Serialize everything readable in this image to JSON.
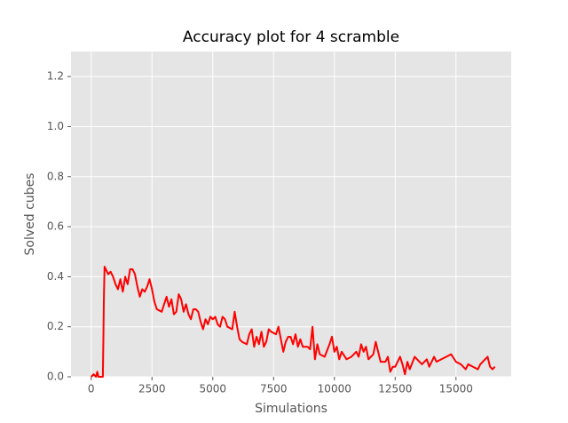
{
  "chart_data": {
    "type": "line",
    "title": "Accuracy plot for 4 scramble",
    "x_label": "Simulations",
    "y_label": "Solved cubes",
    "x": [
      0,
      100,
      200,
      250,
      300,
      400,
      480,
      500,
      520,
      550,
      600,
      700,
      800,
      900,
      1000,
      1100,
      1200,
      1300,
      1400,
      1500,
      1600,
      1700,
      1800,
      1900,
      2000,
      2100,
      2200,
      2300,
      2400,
      2500,
      2600,
      2700,
      2900,
      3000,
      3100,
      3200,
      3300,
      3400,
      3500,
      3600,
      3700,
      3800,
      3900,
      4000,
      4100,
      4200,
      4300,
      4400,
      4500,
      4600,
      4700,
      4800,
      4900,
      5000,
      5100,
      5200,
      5300,
      5400,
      5500,
      5600,
      5800,
      5900,
      6000,
      6100,
      6200,
      6400,
      6500,
      6600,
      6700,
      6800,
      6900,
      7000,
      7100,
      7200,
      7300,
      7400,
      7600,
      7700,
      7800,
      7900,
      8000,
      8100,
      8200,
      8300,
      8400,
      8500,
      8600,
      8700,
      8900,
      9000,
      9100,
      9200,
      9300,
      9400,
      9600,
      9800,
      9900,
      10000,
      10100,
      10200,
      10300,
      10500,
      10700,
      10900,
      11000,
      11100,
      11200,
      11300,
      11400,
      11600,
      11700,
      11800,
      11900,
      12100,
      12200,
      12300,
      12400,
      12500,
      12600,
      12700,
      12800,
      12900,
      13000,
      13100,
      13300,
      13400,
      13600,
      13800,
      13900,
      14100,
      14200,
      14400,
      14600,
      14800,
      15000,
      15200,
      15400,
      15500,
      15700,
      15900,
      16000,
      16300,
      16400,
      16500,
      16600
    ],
    "series": [
      {
        "name": "Solved cubes",
        "color": "#ff0000",
        "values": [
          0.0,
          0.01,
          0.0,
          0.02,
          0.0,
          0.0,
          0.0,
          0.14,
          0.3,
          0.44,
          0.43,
          0.41,
          0.42,
          0.4,
          0.37,
          0.35,
          0.39,
          0.34,
          0.4,
          0.37,
          0.43,
          0.43,
          0.41,
          0.36,
          0.32,
          0.35,
          0.34,
          0.36,
          0.39,
          0.35,
          0.3,
          0.27,
          0.26,
          0.29,
          0.32,
          0.28,
          0.31,
          0.25,
          0.26,
          0.33,
          0.31,
          0.26,
          0.29,
          0.25,
          0.23,
          0.27,
          0.27,
          0.26,
          0.22,
          0.19,
          0.23,
          0.21,
          0.24,
          0.23,
          0.24,
          0.21,
          0.2,
          0.24,
          0.23,
          0.2,
          0.19,
          0.26,
          0.2,
          0.15,
          0.14,
          0.13,
          0.17,
          0.19,
          0.12,
          0.16,
          0.13,
          0.18,
          0.12,
          0.14,
          0.19,
          0.18,
          0.17,
          0.2,
          0.15,
          0.1,
          0.14,
          0.16,
          0.16,
          0.13,
          0.17,
          0.12,
          0.15,
          0.12,
          0.12,
          0.11,
          0.2,
          0.07,
          0.13,
          0.09,
          0.08,
          0.13,
          0.16,
          0.1,
          0.12,
          0.07,
          0.1,
          0.07,
          0.08,
          0.1,
          0.08,
          0.13,
          0.1,
          0.12,
          0.07,
          0.09,
          0.14,
          0.1,
          0.06,
          0.06,
          0.08,
          0.02,
          0.04,
          0.04,
          0.06,
          0.08,
          0.05,
          0.01,
          0.06,
          0.03,
          0.08,
          0.07,
          0.05,
          0.07,
          0.04,
          0.08,
          0.06,
          0.07,
          0.08,
          0.09,
          0.06,
          0.05,
          0.03,
          0.05,
          0.04,
          0.03,
          0.05,
          0.08,
          0.04,
          0.03,
          0.04
        ]
      }
    ],
    "xlim": [
      -830,
      17270
    ],
    "ylim": [
      0,
      1.3
    ],
    "xticks": [
      0,
      2500,
      5000,
      7500,
      10000,
      12500,
      15000
    ],
    "yticks": [
      {
        "value": 0,
        "label": "0.0"
      },
      0.2,
      0.4,
      0.6,
      0.8,
      {
        "value": 1,
        "label": "1.0"
      },
      1.2
    ],
    "grid": true
  }
}
